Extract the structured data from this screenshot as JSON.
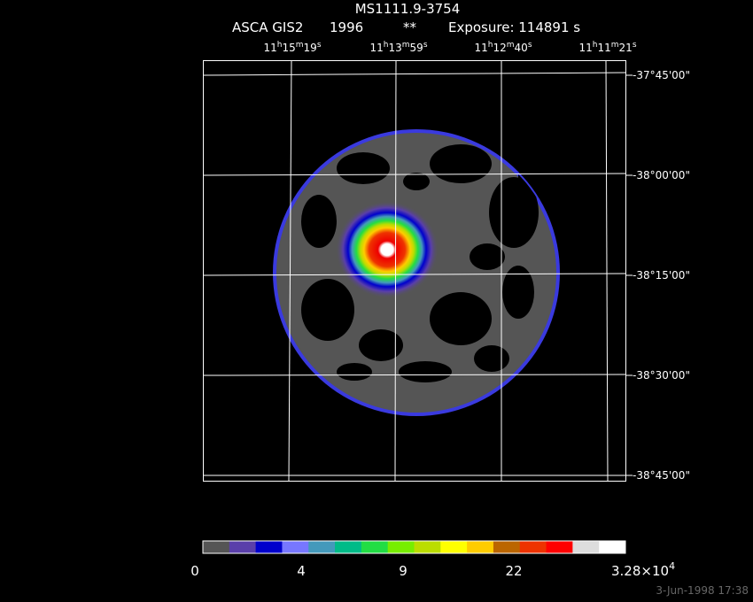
{
  "header": {
    "object": "MS1111.9-3754",
    "instrument": "ASCA GIS2",
    "year": "1996",
    "flag": "**",
    "exposure": "Exposure: 114891 s"
  },
  "ra_labels": [
    "11h15m19s",
    "11h13m59s",
    "11h12m40s",
    "11h11m21s"
  ],
  "dec_labels": [
    "-37°45'00\"",
    "-38°00'00\"",
    "-38°15'00\"",
    "-38°30'00\"",
    "-38°45'00\""
  ],
  "colorbar": {
    "colors": [
      "#555555",
      "#5a3faa",
      "#0000cc",
      "#7777ff",
      "#4499bb",
      "#00bb88",
      "#22dd44",
      "#77ee00",
      "#bbdd00",
      "#ffff00",
      "#ffcc00",
      "#bb6600",
      "#ee3300",
      "#ff0000",
      "#dddddd",
      "#ffffff"
    ],
    "labels": [
      "0",
      "4",
      "9",
      "22"
    ],
    "max_label": {
      "mantissa": "3.28×10",
      "exponent": "4"
    }
  },
  "timestamp": "3-Jun-1998 17:38"
}
